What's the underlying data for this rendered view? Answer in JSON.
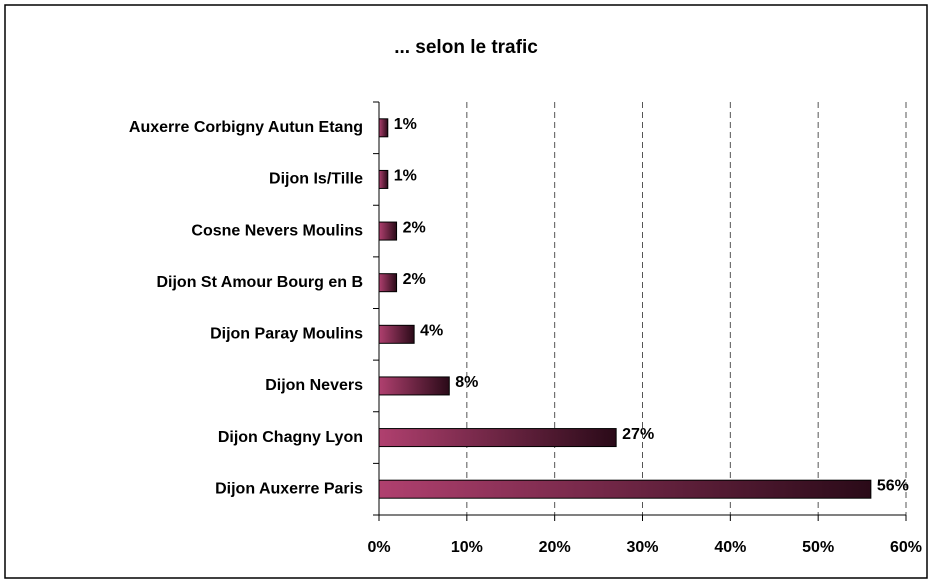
{
  "chart_data": {
    "type": "bar",
    "orientation": "horizontal",
    "title": "... selon le trafic",
    "categories": [
      "Auxerre Corbigny Autun Etang",
      "Dijon Is/Tille",
      "Cosne Nevers Moulins",
      "Dijon St Amour Bourg en B",
      "Dijon Paray Moulins",
      "Dijon Nevers",
      "Dijon Chagny Lyon",
      "Dijon Auxerre Paris"
    ],
    "values": [
      1,
      1,
      2,
      2,
      4,
      8,
      27,
      56
    ],
    "value_labels": [
      "1%",
      "1%",
      "2%",
      "2%",
      "4%",
      "8%",
      "27%",
      "56%"
    ],
    "color": "#b0406f",
    "xlim": [
      0,
      60
    ],
    "xticks": [
      {
        "value": 0,
        "label": "0%"
      },
      {
        "value": 10,
        "label": "10%"
      },
      {
        "value": 20,
        "label": "20%"
      },
      {
        "value": 30,
        "label": "30%"
      },
      {
        "value": 40,
        "label": "40%"
      },
      {
        "value": 50,
        "label": "50%"
      },
      {
        "value": 60,
        "label": "60%"
      }
    ],
    "grid": true
  }
}
